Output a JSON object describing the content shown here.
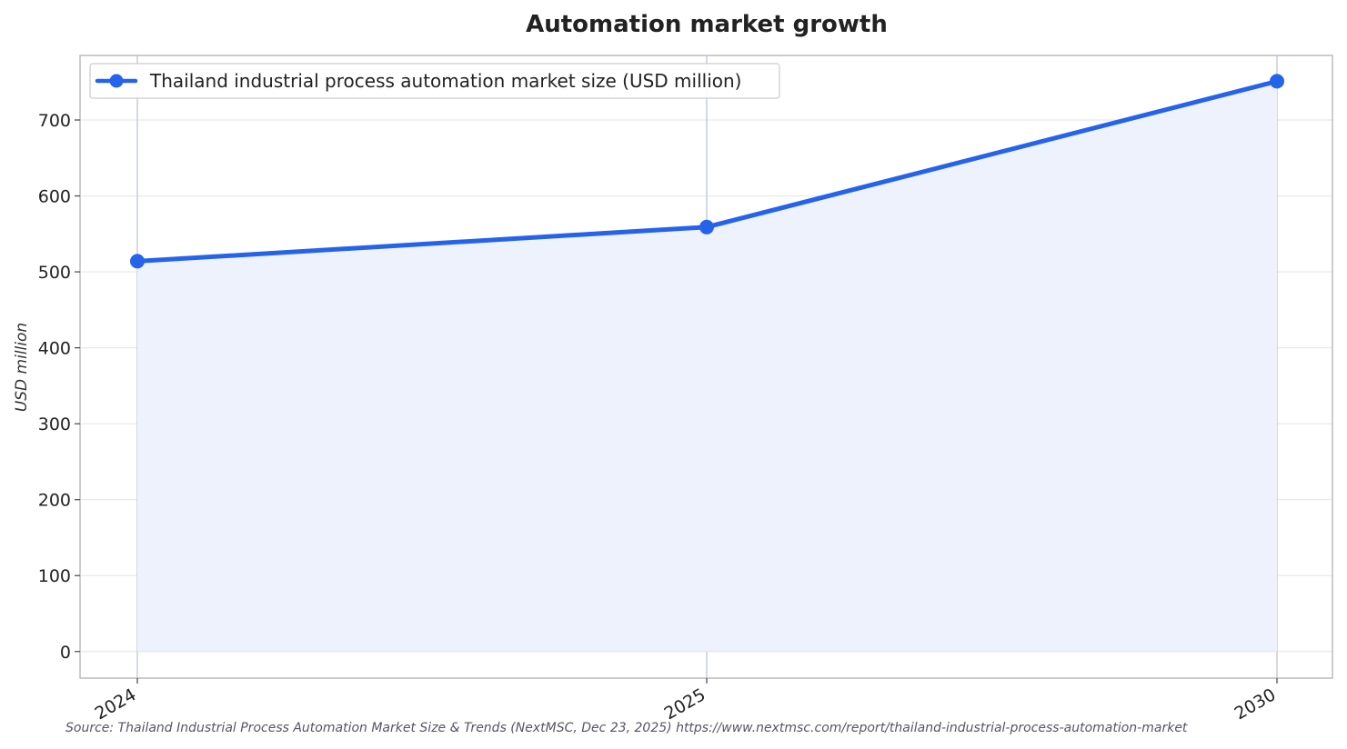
{
  "chart_data": {
    "type": "area",
    "title": "Automation market growth",
    "xlabel": "",
    "ylabel": "USD million",
    "categories": [
      "2024",
      "2025",
      "2030"
    ],
    "series": [
      {
        "name": "Thailand industrial process automation market size (USD million)",
        "values": [
          514,
          559,
          751
        ]
      }
    ],
    "ylim": [
      -35,
      785
    ],
    "yticks": [
      0,
      100,
      200,
      300,
      400,
      500,
      600,
      700
    ],
    "grid": true,
    "legend_position": "top-left",
    "colors": {
      "line": "#2563eb",
      "fill": "#edf2fd",
      "grid": "#e8e8e8",
      "vline": "#b8c0d0",
      "frame": "#bbbbbb"
    },
    "source": "Source: Thailand Industrial Process Automation Market Size & Trends (NextMSC, Dec 23, 2025) https://www.nextmsc.com/report/thailand-industrial-process-automation-market"
  }
}
